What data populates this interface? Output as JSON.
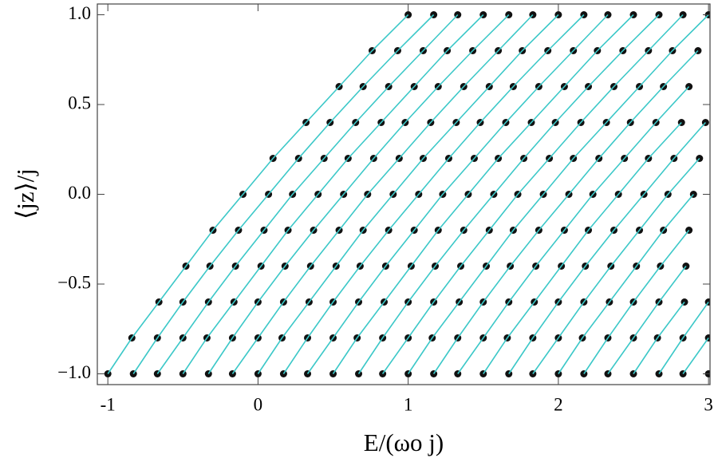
{
  "chart_data": {
    "type": "line",
    "xlabel": "E/(ωo j)",
    "ylabel": "⟨jz⟩/j",
    "xlim": [
      -1.07,
      3.01
    ],
    "ylim": [
      -1.06,
      1.06
    ],
    "xticks": [
      -1,
      0,
      1,
      2,
      3
    ],
    "yticks": [
      {
        "value": -1,
        "label": "−1.0"
      },
      {
        "value": -0.5,
        "label": "−0.5"
      },
      {
        "value": 0,
        "label": "0.0"
      },
      {
        "value": 0.5,
        "label": "0.5"
      },
      {
        "value": 1,
        "label": "1.0"
      }
    ],
    "marker_color": "#111111",
    "line_color": "#3cc8c8",
    "y": [
      -1,
      -0.8,
      -0.6,
      -0.4,
      -0.2,
      0,
      0.2,
      0.4,
      0.6,
      0.8,
      1
    ],
    "series": [
      {
        "x": [
          -1,
          -0.84,
          -0.66,
          -0.48,
          -0.3,
          -0.1,
          0.1,
          0.32,
          0.54,
          0.76,
          1.0
        ]
      },
      {
        "x": [
          -0.83,
          -0.67,
          -0.5,
          -0.32,
          -0.13,
          0.07,
          0.27,
          0.48,
          0.7,
          0.93,
          1.17
        ]
      },
      {
        "x": [
          -0.67,
          -0.5,
          -0.33,
          -0.15,
          0.04,
          0.23,
          0.44,
          0.65,
          0.87,
          1.1,
          1.33
        ]
      },
      {
        "x": [
          -0.5,
          -0.34,
          -0.16,
          0.02,
          0.2,
          0.4,
          0.6,
          0.82,
          1.04,
          1.26,
          1.5
        ]
      },
      {
        "x": [
          -0.33,
          -0.17,
          0.0,
          0.18,
          0.37,
          0.57,
          0.77,
          0.98,
          1.2,
          1.43,
          1.67
        ]
      },
      {
        "x": [
          -0.17,
          0.0,
          0.17,
          0.35,
          0.54,
          0.73,
          0.94,
          1.15,
          1.37,
          1.6,
          1.83
        ]
      },
      {
        "x": [
          0,
          0.16,
          0.34,
          0.52,
          0.7,
          0.9,
          1.1,
          1.32,
          1.54,
          1.76,
          2.0
        ]
      },
      {
        "x": [
          0.17,
          0.33,
          0.5,
          0.68,
          0.87,
          1.07,
          1.27,
          1.48,
          1.7,
          1.93,
          2.17
        ]
      },
      {
        "x": [
          0.33,
          0.5,
          0.67,
          0.85,
          1.04,
          1.23,
          1.44,
          1.65,
          1.87,
          2.1,
          2.33
        ]
      },
      {
        "x": [
          0.5,
          0.66,
          0.84,
          1.02,
          1.2,
          1.4,
          1.6,
          1.82,
          2.04,
          2.26,
          2.5
        ]
      },
      {
        "x": [
          0.67,
          0.83,
          1.0,
          1.18,
          1.37,
          1.57,
          1.77,
          1.98,
          2.2,
          2.43,
          2.67
        ]
      },
      {
        "x": [
          0.83,
          1.0,
          1.17,
          1.35,
          1.54,
          1.73,
          1.94,
          2.15,
          2.37,
          2.6,
          2.83
        ]
      },
      {
        "x": [
          1,
          1.16,
          1.34,
          1.52,
          1.7,
          1.9,
          2.1,
          2.32,
          2.54,
          2.76,
          3.0
        ]
      },
      {
        "x": [
          1.17,
          1.33,
          1.5,
          1.68,
          1.87,
          2.07,
          2.27,
          2.48,
          2.7,
          2.93,
          null
        ]
      },
      {
        "x": [
          1.33,
          1.5,
          1.67,
          1.85,
          2.04,
          2.23,
          2.44,
          2.65,
          2.87,
          null,
          null
        ]
      },
      {
        "x": [
          1.5,
          1.66,
          1.84,
          2.02,
          2.2,
          2.4,
          2.6,
          2.82,
          null,
          null,
          null
        ]
      },
      {
        "x": [
          1.67,
          1.83,
          2.0,
          2.18,
          2.37,
          2.57,
          2.77,
          2.98,
          null,
          null,
          null
        ]
      },
      {
        "x": [
          1.83,
          2.0,
          2.17,
          2.35,
          2.54,
          2.73,
          2.94,
          null,
          null,
          null,
          null
        ]
      },
      {
        "x": [
          2,
          2.16,
          2.34,
          2.52,
          2.7,
          2.9,
          null,
          null,
          null,
          null,
          null
        ]
      },
      {
        "x": [
          2.17,
          2.33,
          2.5,
          2.68,
          2.87,
          null,
          null,
          null,
          null,
          null,
          null
        ]
      },
      {
        "x": [
          2.33,
          2.5,
          2.67,
          2.85,
          null,
          null,
          null,
          null,
          null,
          null,
          null
        ]
      },
      {
        "x": [
          2.5,
          2.66,
          2.84,
          null,
          null,
          null,
          null,
          null,
          null,
          null,
          null
        ]
      },
      {
        "x": [
          2.67,
          2.83,
          3.0,
          null,
          null,
          null,
          null,
          null,
          null,
          null,
          null
        ]
      },
      {
        "x": [
          2.83,
          3.0,
          null,
          null,
          null,
          null,
          null,
          null,
          null,
          null,
          null
        ]
      },
      {
        "x": [
          3.0,
          null,
          null,
          null,
          null,
          null,
          null,
          null,
          null,
          null,
          null
        ]
      }
    ]
  }
}
